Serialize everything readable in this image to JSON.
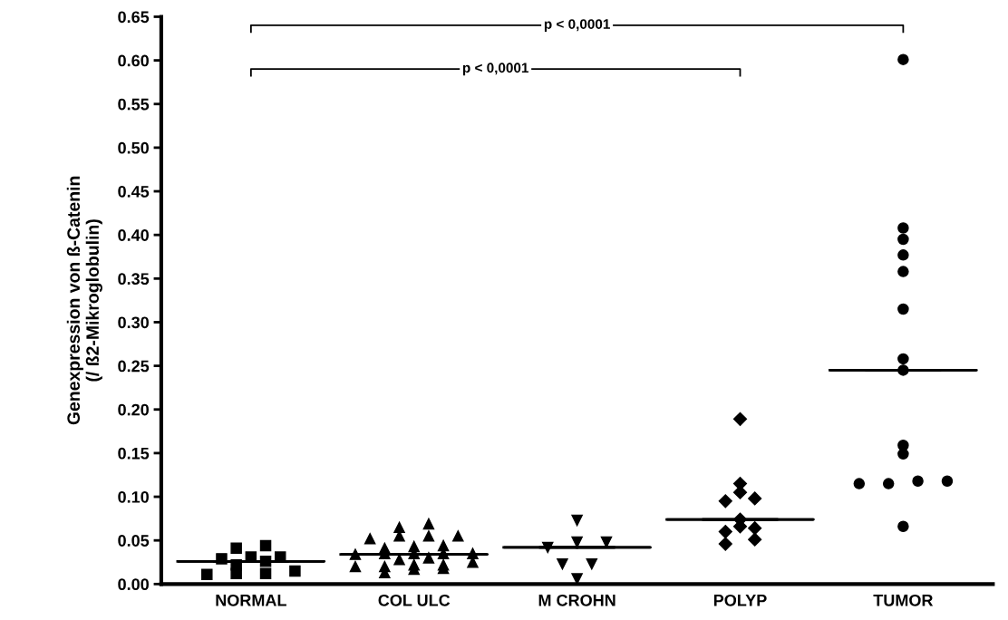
{
  "chart_data": {
    "type": "scatter",
    "ylabel": "Genexpression von ß-Catenin\n(/ ß2-Mikroglobulin)",
    "categories": [
      "NORMAL",
      "COL ULC",
      "M CROHN",
      "POLYP",
      "TUMOR"
    ],
    "ylim": [
      0,
      0.65
    ],
    "yticks": [
      {
        "value": 0,
        "label": "0.00"
      },
      {
        "value": 0.05,
        "label": "0.05"
      },
      {
        "value": 0.1,
        "label": "0.10"
      },
      {
        "value": 0.15,
        "label": "0.15"
      },
      {
        "value": 0.2,
        "label": "0.20"
      },
      {
        "value": 0.25,
        "label": "0.25"
      },
      {
        "value": 0.3,
        "label": "0.30"
      },
      {
        "value": 0.35,
        "label": "0.35"
      },
      {
        "value": 0.4,
        "label": "0.40"
      },
      {
        "value": 0.45,
        "label": "0.45"
      },
      {
        "value": 0.5,
        "label": "0.50"
      },
      {
        "value": 0.55,
        "label": "0.55"
      },
      {
        "value": 0.6,
        "label": "0.60"
      },
      {
        "value": 0.65,
        "label": "0.65"
      }
    ],
    "grid": false,
    "legend": false,
    "series": [
      {
        "marker": "square",
        "color": "#000000",
        "x": [
          "NORMAL",
          "NORMAL",
          "NORMAL",
          "NORMAL",
          "NORMAL",
          "NORMAL",
          "NORMAL",
          "NORMAL",
          "NORMAL",
          "NORMAL",
          "NORMAL"
        ],
        "values": [
          0.044,
          0.041,
          0.031,
          0.031,
          0.029,
          0.026,
          0.022,
          0.015,
          0.012,
          0.012,
          0.011
        ]
      },
      {
        "marker": "triangle",
        "color": "#000000",
        "x": [
          "COL ULC",
          "COL ULC",
          "COL ULC",
          "COL ULC",
          "COL ULC",
          "COL ULC",
          "COL ULC",
          "COL ULC",
          "COL ULC",
          "COL ULC",
          "COL ULC",
          "COL ULC",
          "COL ULC",
          "COL ULC",
          "COL ULC",
          "COL ULC",
          "COL ULC",
          "COL ULC",
          "COL ULC",
          "COL ULC",
          "COL ULC",
          "COL ULC",
          "COL ULC",
          "COL ULC"
        ],
        "values": [
          0.069,
          0.065,
          0.055,
          0.055,
          0.055,
          0.052,
          0.044,
          0.043,
          0.041,
          0.035,
          0.035,
          0.035,
          0.035,
          0.034,
          0.03,
          0.028,
          0.025,
          0.022,
          0.022,
          0.02,
          0.02,
          0.018,
          0.017,
          0.013
        ]
      },
      {
        "marker": "triangle_down",
        "color": "#000000",
        "x": [
          "M CROHN",
          "M CROHN",
          "M CROHN",
          "M CROHN",
          "M CROHN",
          "M CROHN",
          "M CROHN"
        ],
        "values": [
          0.073,
          0.048,
          0.048,
          0.042,
          0.023,
          0.023,
          0.006
        ]
      },
      {
        "marker": "diamond",
        "color": "#000000",
        "x": [
          "POLYP",
          "POLYP",
          "POLYP",
          "POLYP",
          "POLYP",
          "POLYP",
          "POLYP",
          "POLYP",
          "POLYP",
          "POLYP",
          "POLYP"
        ],
        "values": [
          0.189,
          0.115,
          0.105,
          0.098,
          0.095,
          0.074,
          0.066,
          0.064,
          0.06,
          0.051,
          0.046
        ]
      },
      {
        "marker": "circle",
        "color": "#000000",
        "x": [
          "TUMOR",
          "TUMOR",
          "TUMOR",
          "TUMOR",
          "TUMOR",
          "TUMOR",
          "TUMOR",
          "TUMOR",
          "TUMOR",
          "TUMOR",
          "TUMOR",
          "TUMOR",
          "TUMOR",
          "TUMOR",
          "TUMOR"
        ],
        "values": [
          0.601,
          0.408,
          0.395,
          0.377,
          0.358,
          0.315,
          0.258,
          0.245,
          0.159,
          0.149,
          0.118,
          0.118,
          0.115,
          0.115,
          0.066
        ]
      },
      {
        "type": "box",
        "color": "#000000",
        "boxes": [
          {
            "low": 0.026,
            "q1": 0.026,
            "median": 0.026,
            "q3": 0.026,
            "high": 0.026
          },
          {
            "low": 0.034,
            "q1": 0.034,
            "median": 0.034,
            "q3": 0.034,
            "high": 0.034
          },
          {
            "low": 0.042,
            "q1": 0.042,
            "median": 0.042,
            "q3": 0.042,
            "high": 0.042
          },
          {
            "low": 0.074,
            "q1": 0.074,
            "median": 0.074,
            "q3": 0.074,
            "high": 0.074
          },
          {
            "low": 0.245,
            "q1": 0.245,
            "median": 0.245,
            "q3": 0.245,
            "high": 0.245
          }
        ]
      }
    ],
    "annotations": [
      "p < 0,0001",
      "p < 0,0001"
    ]
  }
}
